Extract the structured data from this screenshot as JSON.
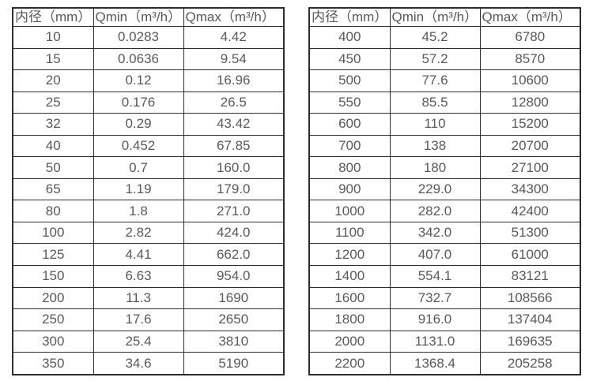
{
  "colors": {
    "border": "#2d2d2d",
    "text": "#595959",
    "background": "#ffffff"
  },
  "column_keys": [
    "inner-diameter",
    "qmin",
    "qmax"
  ],
  "tables": [
    {
      "name": "small-diameters",
      "headers": [
        "内径（mm）",
        "Qmin（m³/h）",
        "Qmax（m³/h）"
      ],
      "rows": [
        [
          "10",
          "0.0283",
          "4.42"
        ],
        [
          "15",
          "0.0636",
          "9.54"
        ],
        [
          "20",
          "0.12",
          "16.96"
        ],
        [
          "25",
          "0.176",
          "26.5"
        ],
        [
          "32",
          "0.29",
          "43.42"
        ],
        [
          "40",
          "0.452",
          "67.85"
        ],
        [
          "50",
          "0.7",
          "160.0"
        ],
        [
          "65",
          "1.19",
          "179.0"
        ],
        [
          "80",
          "1.8",
          "271.0"
        ],
        [
          "100",
          "2.82",
          "424.0"
        ],
        [
          "125",
          "4.41",
          "662.0"
        ],
        [
          "150",
          "6.63",
          "954.0"
        ],
        [
          "200",
          "11.3",
          "1690"
        ],
        [
          "250",
          "17.6",
          "2650"
        ],
        [
          "300",
          "25.4",
          "3810"
        ],
        [
          "350",
          "34.6",
          "5190"
        ]
      ]
    },
    {
      "name": "large-diameters",
      "headers": [
        "内径（mm）",
        "Qmin（m³/h）",
        "Qmax（m³/h）"
      ],
      "rows": [
        [
          "400",
          "45.2",
          "6780"
        ],
        [
          "450",
          "57.2",
          "8570"
        ],
        [
          "500",
          "77.6",
          "10600"
        ],
        [
          "550",
          "85.5",
          "12800"
        ],
        [
          "600",
          "110",
          "15200"
        ],
        [
          "700",
          "138",
          "20700"
        ],
        [
          "800",
          "180",
          "27100"
        ],
        [
          "900",
          "229.0",
          "34300"
        ],
        [
          "1000",
          "282.0",
          "42400"
        ],
        [
          "1100",
          "342.0",
          "51300"
        ],
        [
          "1200",
          "407.0",
          "61000"
        ],
        [
          "1400",
          "554.1",
          "83121"
        ],
        [
          "1600",
          "732.7",
          "108566"
        ],
        [
          "1800",
          "916.0",
          "137404"
        ],
        [
          "2000",
          "1131.0",
          "169635"
        ],
        [
          "2200",
          "1368.4",
          "205258"
        ]
      ]
    }
  ]
}
